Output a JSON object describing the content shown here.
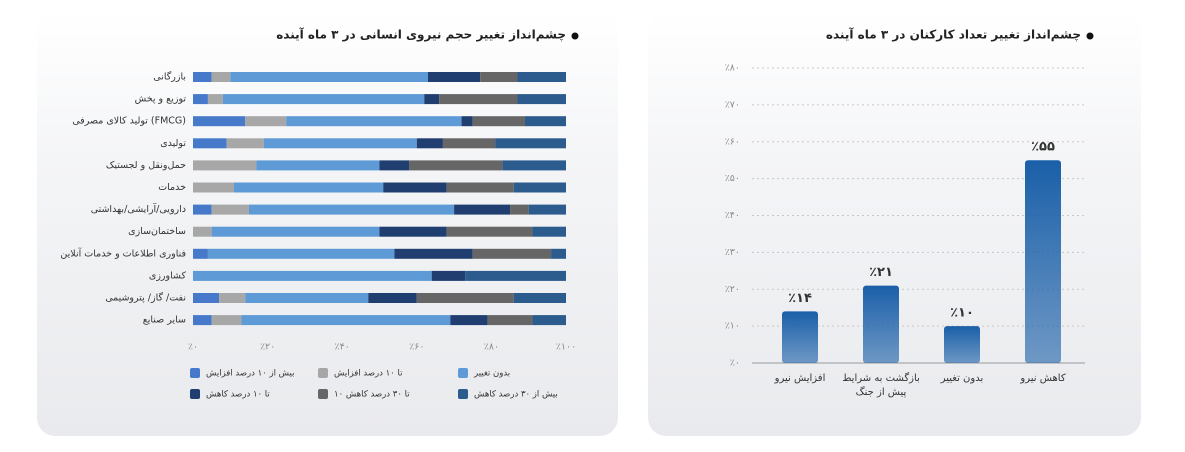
{
  "chart_data": [
    {
      "type": "barh",
      "stacked": true,
      "title": "چشم‌انداز تغییر حجم نیروی انسانی در ۳ ماه آینده",
      "categories": [
        "بازرگانی",
        "توزیع و پخش",
        "تولید کالای مصرفی (FMCG)",
        "تولیدی",
        "حمل‌ونقل و لجستیک",
        "خدمات",
        "دارویی/آرایشی/بهداشتی",
        "ساختمان‌سازی",
        "فناوری اطلاعات و خدمات آنلاین",
        "کشاورزی",
        "نفت/ گاز/ پتروشیمی",
        "سایر صنایع"
      ],
      "series": [
        {
          "name": "بیش از ۱۰ درصد افزایش",
          "color": "#4679c9",
          "values": [
            5,
            4,
            14,
            9,
            0,
            0,
            5,
            0,
            4,
            0,
            7,
            5
          ]
        },
        {
          "name": "تا ۱۰ درصد افزایش",
          "color": "#a7a7a7",
          "values": [
            5,
            4,
            11,
            10,
            17,
            11,
            10,
            5,
            0,
            0,
            7,
            8
          ]
        },
        {
          "name": "بدون تغییر",
          "color": "#5d9ad6",
          "values": [
            53,
            54,
            47,
            41,
            33,
            40,
            55,
            45,
            50,
            64,
            33,
            56
          ]
        },
        {
          "name": "تا ۱۰ درصد کاهش",
          "color": "#203f70",
          "values": [
            14,
            4,
            3,
            7,
            8,
            17,
            15,
            18,
            21,
            9,
            13,
            10
          ]
        },
        {
          "name": "۱۰ تا ۳۰ درصد کاهش",
          "color": "#666666",
          "values": [
            10,
            21,
            14,
            14,
            25,
            18,
            5,
            23,
            21,
            0,
            26,
            12
          ]
        },
        {
          "name": "بیش از ۳۰ درصد کاهش",
          "color": "#2c5b8e",
          "values": [
            13,
            13,
            11,
            19,
            17,
            14,
            10,
            9,
            4,
            27,
            14,
            9
          ]
        }
      ],
      "xlim": [
        0,
        100
      ],
      "xticks": [
        {
          "value": 0,
          "label": "٪۰"
        },
        {
          "value": 20,
          "label": "٪۲۰"
        },
        {
          "value": 40,
          "label": "٪۴۰"
        },
        {
          "value": 60,
          "label": "٪۶۰"
        },
        {
          "value": 80,
          "label": "٪۸۰"
        },
        {
          "value": 100,
          "label": "٪۱۰۰"
        }
      ],
      "grid": false
    },
    {
      "type": "bar",
      "title": "چشم‌انداز تغییر تعداد کارکنان در ۳ ماه آینده",
      "categories": [
        "افزایش نیرو",
        "بازگشت به شرایط پیش از جنگ",
        "بدون تغییر",
        "کاهش نیرو"
      ],
      "values": [
        14,
        21,
        10,
        55
      ],
      "value_labels": [
        "٪۱۴",
        "٪۲۱",
        "٪۱۰",
        "٪۵۵"
      ],
      "color": "#1a5fa8",
      "ylim": [
        0,
        80
      ],
      "yticks": [
        {
          "value": 0,
          "label": "٪۰"
        },
        {
          "value": 10,
          "label": "٪۱۰"
        },
        {
          "value": 20,
          "label": "٪۲۰"
        },
        {
          "value": 30,
          "label": "٪۳۰"
        },
        {
          "value": 40,
          "label": "٪۴۰"
        },
        {
          "value": 50,
          "label": "٪۵۰"
        },
        {
          "value": 60,
          "label": "٪۶۰"
        },
        {
          "value": 70,
          "label": "٪۷۰"
        },
        {
          "value": 80,
          "label": "٪۸۰"
        }
      ],
      "grid": true
    }
  ]
}
